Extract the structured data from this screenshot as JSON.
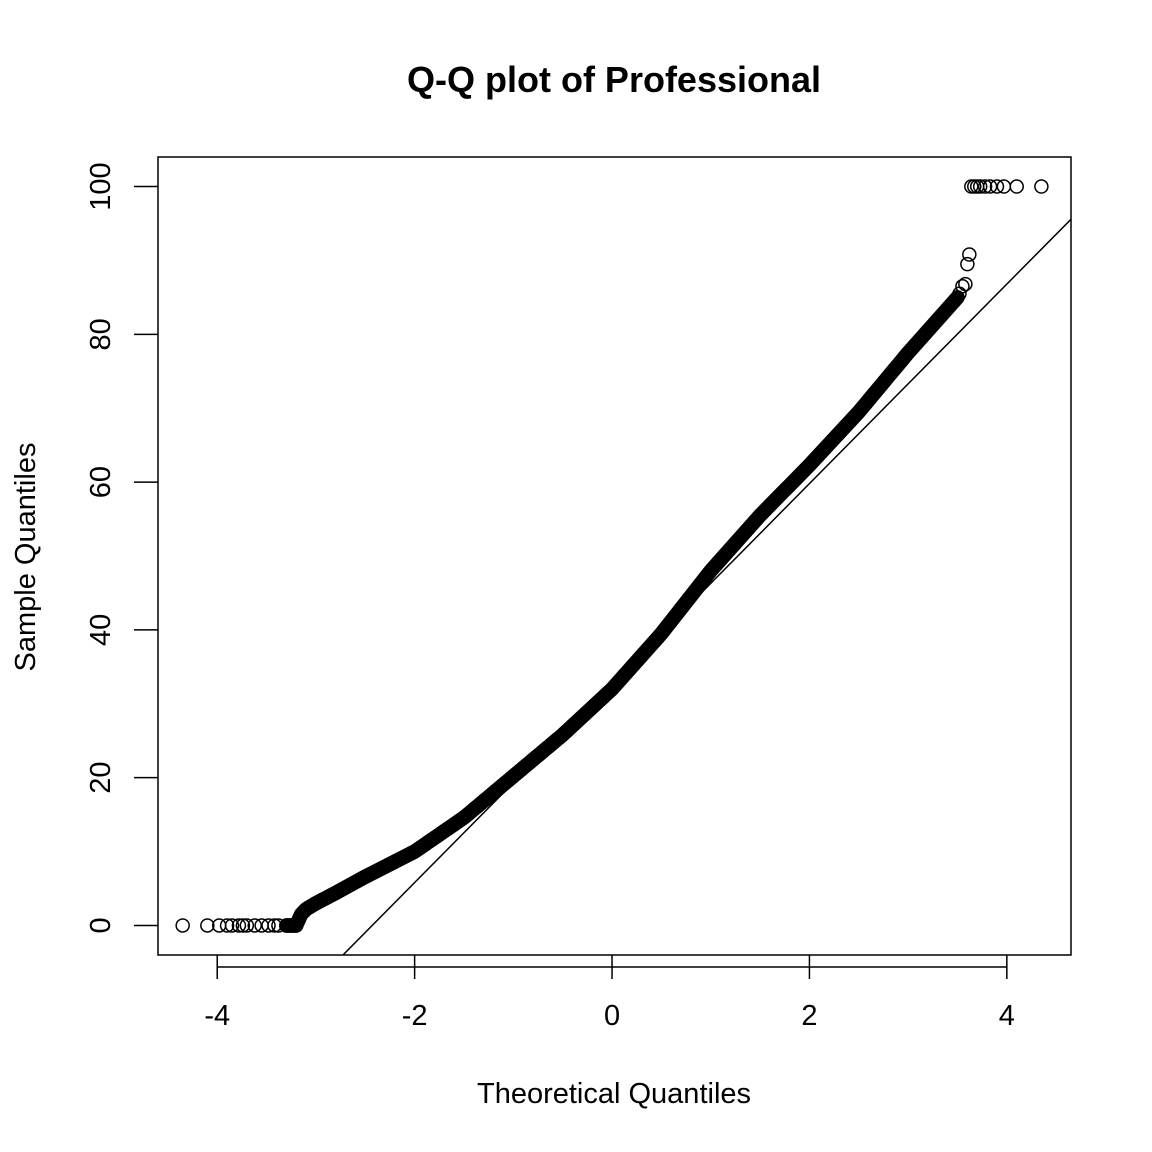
{
  "chart_data": {
    "type": "scatter",
    "title": "Q-Q plot of Professional",
    "xlabel": "Theoretical Quantiles",
    "ylabel": "Sample Quantiles",
    "xlim": [
      -4.6,
      4.65
    ],
    "ylim": [
      -4,
      104
    ],
    "x_ticks": [
      -4,
      -2,
      0,
      2,
      4
    ],
    "x_tick_labels": [
      "-4",
      "-2",
      "0",
      "2",
      "4"
    ],
    "y_ticks": [
      0,
      20,
      40,
      60,
      80,
      100
    ],
    "y_tick_labels": [
      "0",
      "20",
      "40",
      "60",
      "80",
      "100"
    ],
    "grid": false,
    "legend": "none",
    "marker": "open-circle",
    "point_color": "#000000",
    "reference_line": {
      "intercept": 32.8,
      "slope": 13.5
    },
    "curve_knots": {
      "x": [
        -3.2,
        -3.15,
        -3.1,
        -3.0,
        -2.8,
        -2.5,
        -2.0,
        -1.5,
        -1.0,
        -0.5,
        0.0,
        0.5,
        1.0,
        1.5,
        2.0,
        2.5,
        3.0,
        3.3,
        3.5
      ],
      "y": [
        0,
        1.5,
        2.2,
        3.0,
        4.4,
        6.6,
        10.0,
        14.6,
        20.2,
        25.8,
        32.0,
        39.5,
        48.0,
        55.5,
        62.3,
        69.5,
        77.5,
        82.0,
        85.0
      ]
    },
    "tail_points": {
      "x": [
        -4.35,
        -4.1,
        -3.98,
        -3.9,
        -3.85,
        -3.78,
        -3.74,
        -3.7,
        -3.62,
        -3.55,
        -3.48,
        -3.42,
        -3.38,
        -3.3,
        -3.25,
        3.52,
        3.55,
        3.58,
        3.6,
        3.62,
        3.64,
        3.67,
        3.7,
        3.73,
        3.78,
        3.83,
        3.9,
        3.97,
        4.1,
        4.35
      ],
      "y": [
        0,
        0,
        0,
        0,
        0,
        0,
        0,
        0,
        0,
        0,
        0,
        0,
        0,
        0,
        0,
        85.5,
        86.5,
        86.8,
        89.5,
        90.8,
        100,
        100,
        100,
        100,
        100,
        100,
        100,
        100,
        100,
        100
      ]
    }
  }
}
